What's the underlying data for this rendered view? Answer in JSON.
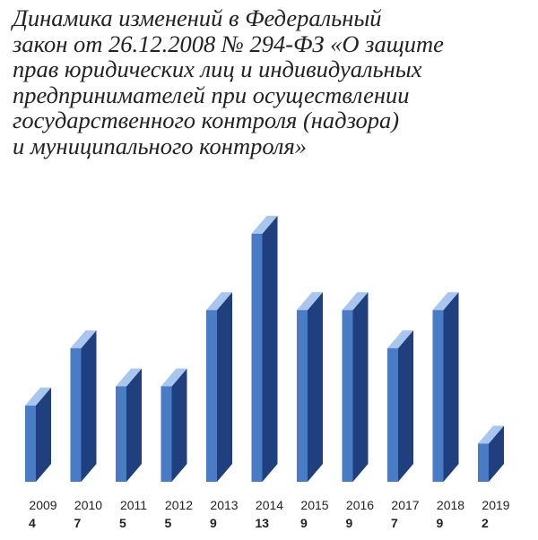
{
  "title_lines": [
    "Динамика изменений в Федеральный",
    "закон от 26.12.2008 № 294-ФЗ «О защите",
    "прав юридических лиц и индивидуальных",
    "предпринимателей при осуществлении",
    "государственного контроля (надзора)",
    "и муниципального контроля»"
  ],
  "chart_data": {
    "type": "bar",
    "title": "Динамика изменений в Федеральный закон от 26.12.2008 № 294-ФЗ «О защите прав юридических лиц и индивидуальных предпринимателей при осуществлении государственного контроля (надзора) и муниципального контроля»",
    "categories": [
      "2009",
      "2010",
      "2011",
      "2012",
      "2013",
      "2014",
      "2015",
      "2016",
      "2017",
      "2018",
      "2019"
    ],
    "values": [
      4,
      7,
      5,
      5,
      9,
      13,
      9,
      9,
      7,
      9,
      2
    ],
    "xlabel": "",
    "ylabel": "",
    "ylim": [
      0,
      13
    ],
    "grid": false,
    "legend": "none",
    "style": "3d-column",
    "colors": {
      "front": "#4a7cc6",
      "top": "#a9c6ee",
      "side": "#1f3f7e"
    }
  }
}
